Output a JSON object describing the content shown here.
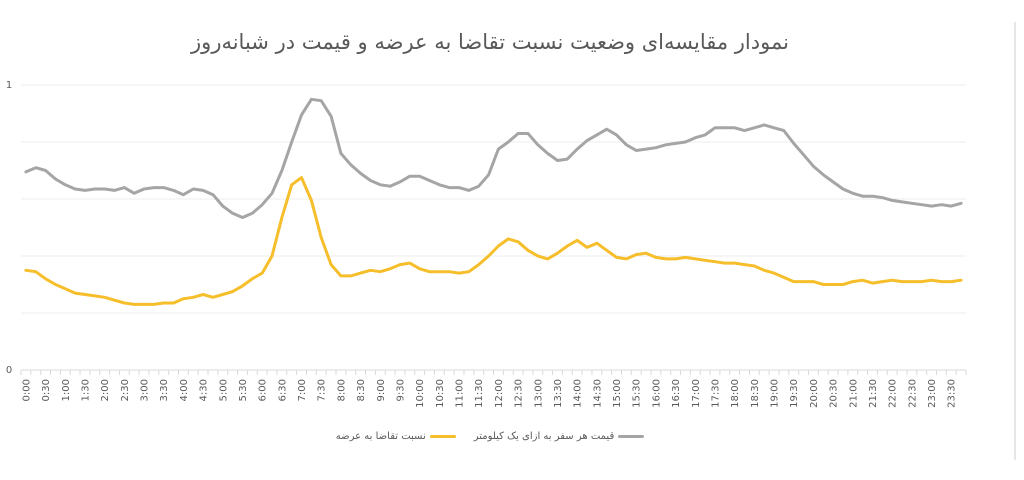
{
  "chart_data": {
    "type": "line",
    "title": "نمودار مقایسه‌ای وضعیت نسبت تقاضا به عرضه و قیمت در شبانه‌روز",
    "xlabel": "",
    "ylabel": "",
    "ylim": [
      0,
      1
    ],
    "y_tick_labels": [
      "0",
      "1"
    ],
    "grid": true,
    "gridline_step": 0.2,
    "legend_position": "bottom",
    "x_tick_labels": [
      "0:00",
      "0:30",
      "1:00",
      "1:30",
      "2:00",
      "2:30",
      "3:00",
      "3:30",
      "4:00",
      "4:30",
      "5:00",
      "5:30",
      "6:00",
      "6:30",
      "7:00",
      "7:30",
      "8:00",
      "8:30",
      "9:00",
      "9:30",
      "10:00",
      "10:30",
      "11:00",
      "11:30",
      "12:00",
      "12:30",
      "13:00",
      "13:30",
      "14:00",
      "14:30",
      "15:00",
      "15:30",
      "16:00",
      "16:30",
      "17:00",
      "17:30",
      "18:00",
      "18:30",
      "19:00",
      "19:30",
      "20:00",
      "20:30",
      "21:00",
      "21:30",
      "22:00",
      "22:30",
      "23:00",
      "23:30"
    ],
    "x": [
      "0:00",
      "0:15",
      "0:30",
      "0:45",
      "1:00",
      "1:15",
      "1:30",
      "1:45",
      "2:00",
      "2:15",
      "2:30",
      "2:45",
      "3:00",
      "3:15",
      "3:30",
      "3:45",
      "4:00",
      "4:15",
      "4:30",
      "4:45",
      "5:00",
      "5:15",
      "5:30",
      "5:45",
      "6:00",
      "6:15",
      "6:30",
      "6:45",
      "7:00",
      "7:15",
      "7:30",
      "7:45",
      "8:00",
      "8:15",
      "8:30",
      "8:45",
      "9:00",
      "9:15",
      "9:30",
      "9:45",
      "10:00",
      "10:15",
      "10:30",
      "10:45",
      "11:00",
      "11:15",
      "11:30",
      "11:45",
      "12:00",
      "12:15",
      "12:30",
      "12:45",
      "13:00",
      "13:15",
      "13:30",
      "13:45",
      "14:00",
      "14:15",
      "14:30",
      "14:45",
      "15:00",
      "15:15",
      "15:30",
      "15:45",
      "16:00",
      "16:15",
      "16:30",
      "16:45",
      "17:00",
      "17:15",
      "17:30",
      "17:45",
      "18:00",
      "18:15",
      "18:30",
      "18:45",
      "19:00",
      "19:15",
      "19:30",
      "19:45",
      "20:00",
      "20:15",
      "20:30",
      "20:45",
      "21:00",
      "21:15",
      "21:30",
      "21:45",
      "22:00",
      "22:15",
      "22:30",
      "22:45",
      "23:00",
      "23:15",
      "23:30",
      "23:45"
    ],
    "series": [
      {
        "name": "نسبت تقاضا به عرضه",
        "color": "#F5BE2A",
        "values": [
          0.35,
          0.345,
          0.32,
          0.3,
          0.285,
          0.27,
          0.265,
          0.26,
          0.255,
          0.245,
          0.235,
          0.23,
          0.23,
          0.23,
          0.235,
          0.235,
          0.25,
          0.255,
          0.265,
          0.255,
          0.265,
          0.275,
          0.295,
          0.32,
          0.34,
          0.4,
          0.535,
          0.65,
          0.675,
          0.595,
          0.465,
          0.37,
          0.33,
          0.33,
          0.34,
          0.35,
          0.345,
          0.355,
          0.37,
          0.375,
          0.355,
          0.345,
          0.345,
          0.345,
          0.34,
          0.345,
          0.37,
          0.4,
          0.435,
          0.46,
          0.45,
          0.42,
          0.4,
          0.39,
          0.41,
          0.435,
          0.455,
          0.43,
          0.445,
          0.42,
          0.395,
          0.39,
          0.405,
          0.41,
          0.395,
          0.39,
          0.39,
          0.395,
          0.39,
          0.385,
          0.38,
          0.375,
          0.375,
          0.37,
          0.365,
          0.35,
          0.34,
          0.325,
          0.31,
          0.31,
          0.31,
          0.3,
          0.3,
          0.3,
          0.31,
          0.315,
          0.305,
          0.31,
          0.315,
          0.31,
          0.31,
          0.31,
          0.315,
          0.31,
          0.31,
          0.315
        ]
      },
      {
        "name": "قیمت هر سفر به ازای یک کیلومتر",
        "color": "#A5A5A5",
        "values": [
          0.695,
          0.71,
          0.7,
          0.67,
          0.65,
          0.635,
          0.63,
          0.635,
          0.635,
          0.63,
          0.64,
          0.62,
          0.635,
          0.64,
          0.64,
          0.63,
          0.615,
          0.635,
          0.63,
          0.615,
          0.575,
          0.55,
          0.535,
          0.55,
          0.58,
          0.62,
          0.7,
          0.8,
          0.895,
          0.95,
          0.945,
          0.89,
          0.76,
          0.72,
          0.69,
          0.665,
          0.65,
          0.645,
          0.66,
          0.68,
          0.68,
          0.665,
          0.65,
          0.64,
          0.64,
          0.63,
          0.645,
          0.685,
          0.775,
          0.8,
          0.83,
          0.83,
          0.79,
          0.76,
          0.735,
          0.74,
          0.775,
          0.805,
          0.825,
          0.845,
          0.825,
          0.79,
          0.77,
          0.775,
          0.78,
          0.79,
          0.795,
          0.8,
          0.815,
          0.825,
          0.85,
          0.85,
          0.85,
          0.84,
          0.85,
          0.86,
          0.85,
          0.84,
          0.795,
          0.755,
          0.715,
          0.685,
          0.66,
          0.635,
          0.62,
          0.61,
          0.61,
          0.605,
          0.595,
          0.59,
          0.585,
          0.58,
          0.575,
          0.58,
          0.575,
          0.585
        ]
      }
    ]
  },
  "legend": {
    "items": [
      {
        "label": "نسبت تقاضا به عرضه",
        "color": "#F5BE2A"
      },
      {
        "label": "قیمت هر سفر به ازای یک کیلومتر",
        "color": "#A5A5A5"
      }
    ]
  }
}
